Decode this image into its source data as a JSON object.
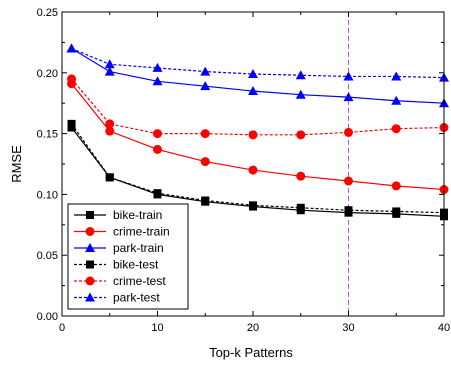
{
  "chart_data": {
    "type": "line",
    "xlabel": "Top-k Patterns",
    "ylabel": "RMSE",
    "xlim": [
      0,
      40
    ],
    "ylim": [
      0,
      0.25
    ],
    "xticks": [
      0,
      10,
      20,
      30,
      40
    ],
    "yticks": [
      0.0,
      0.05,
      0.1,
      0.15,
      0.2,
      0.25
    ],
    "xtick_labels": [
      "0",
      "10",
      "20",
      "30",
      "40"
    ],
    "ytick_labels": [
      "0.00",
      "0.05",
      "0.10",
      "0.15",
      "0.20",
      "0.25"
    ],
    "grid": false,
    "legend_position": "bottom-left",
    "vertical_reference_line": {
      "x": 30,
      "color": "#c44fd6",
      "style": "dashed"
    },
    "x": [
      1,
      5,
      10,
      15,
      20,
      25,
      30,
      35,
      40
    ],
    "series": [
      {
        "name": "bike-train",
        "color": "#000000",
        "marker": "square",
        "dashed": false,
        "values": [
          0.155,
          0.114,
          0.1,
          0.094,
          0.09,
          0.087,
          0.085,
          0.084,
          0.082
        ]
      },
      {
        "name": "crime-train",
        "color": "#ff0000",
        "marker": "circle",
        "dashed": false,
        "values": [
          0.191,
          0.152,
          0.137,
          0.127,
          0.12,
          0.115,
          0.111,
          0.107,
          0.104
        ]
      },
      {
        "name": "park-train",
        "color": "#0000ff",
        "marker": "triangle",
        "dashed": false,
        "values": [
          0.22,
          0.201,
          0.193,
          0.189,
          0.185,
          0.182,
          0.18,
          0.177,
          0.175
        ]
      },
      {
        "name": "bike-test",
        "color": "#000000",
        "marker": "square",
        "dashed": true,
        "values": [
          0.158,
          0.114,
          0.101,
          0.095,
          0.091,
          0.089,
          0.087,
          0.086,
          0.085
        ]
      },
      {
        "name": "crime-test",
        "color": "#ff0000",
        "marker": "circle",
        "dashed": true,
        "values": [
          0.195,
          0.158,
          0.15,
          0.15,
          0.149,
          0.149,
          0.151,
          0.154,
          0.155
        ]
      },
      {
        "name": "park-test",
        "color": "#0000ff",
        "marker": "triangle",
        "dashed": true,
        "values": [
          0.22,
          0.207,
          0.204,
          0.201,
          0.199,
          0.198,
          0.197,
          0.197,
          0.196
        ]
      }
    ]
  }
}
